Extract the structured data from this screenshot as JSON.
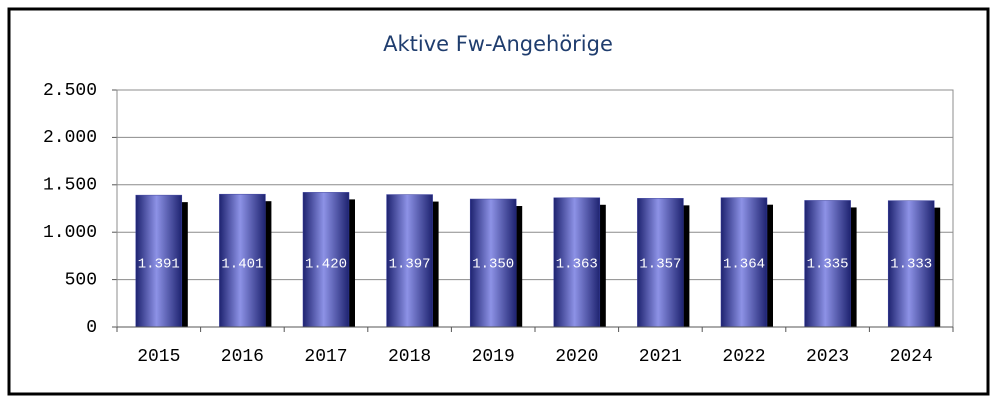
{
  "chart_data": {
    "type": "bar",
    "title": "Aktive Fw-Angehörige",
    "categories": [
      "2015",
      "2016",
      "2017",
      "2018",
      "2019",
      "2020",
      "2021",
      "2022",
      "2023",
      "2024"
    ],
    "values": [
      1391,
      1401,
      1420,
      1397,
      1350,
      1363,
      1357,
      1364,
      1335,
      1333
    ],
    "value_labels": [
      "1.391",
      "1.401",
      "1.420",
      "1.397",
      "1.350",
      "1.363",
      "1.357",
      "1.364",
      "1.335",
      "1.333"
    ],
    "color": "#3a3f9e",
    "ylim": [
      0,
      2500
    ],
    "yticks": [
      0,
      500,
      {
        "value": 1000,
        "label": "1.000"
      },
      {
        "value": 1500,
        "label": "1.500"
      },
      {
        "value": 2000,
        "label": "2.000"
      },
      {
        "value": 2500,
        "label": "2.500"
      }
    ],
    "grid": true
  }
}
